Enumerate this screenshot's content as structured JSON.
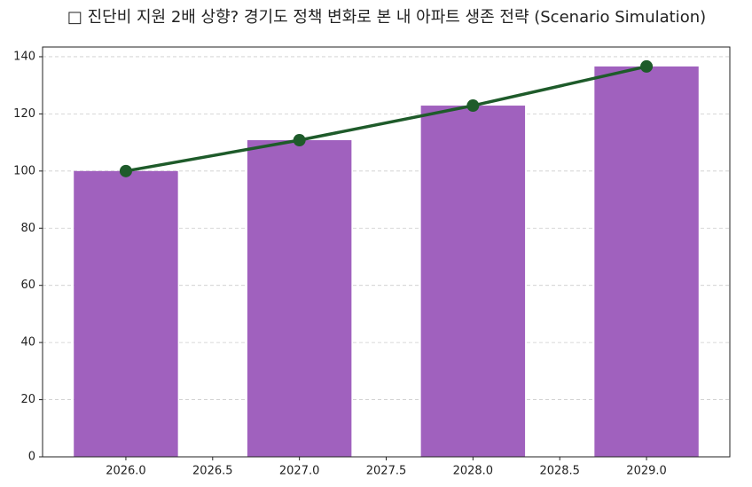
{
  "chart_data": {
    "type": "bar",
    "title": "□ 진단비 지원 2배 상향? 경기도 정책 변화로 본 내 아파트 생존 전략 (Scenario Simulation)",
    "x": [
      2026,
      2027,
      2028,
      2029
    ],
    "series": [
      {
        "type": "bar",
        "color": "#a061be",
        "values": [
          100,
          110.8,
          122.9,
          136.6
        ]
      },
      {
        "type": "line",
        "color": "#1e5b2a",
        "values": [
          100,
          110.8,
          122.9,
          136.6
        ]
      }
    ],
    "xlim": [
      2025.52,
      2029.48
    ],
    "xticks": [
      {
        "value": 2026,
        "label": "2026.0"
      },
      {
        "value": 2026.5,
        "label": "2026.5"
      },
      {
        "value": 2027,
        "label": "2027.0"
      },
      {
        "value": 2027.5,
        "label": "2027.5"
      },
      {
        "value": 2028,
        "label": "2028.0"
      },
      {
        "value": 2028.5,
        "label": "2028.5"
      },
      {
        "value": 2029,
        "label": "2029.0"
      }
    ],
    "ylim": [
      0,
      143.4
    ],
    "yticks": [
      0,
      20,
      40,
      60,
      80,
      100,
      120,
      140
    ],
    "bar_width": 0.6,
    "grid": true
  }
}
